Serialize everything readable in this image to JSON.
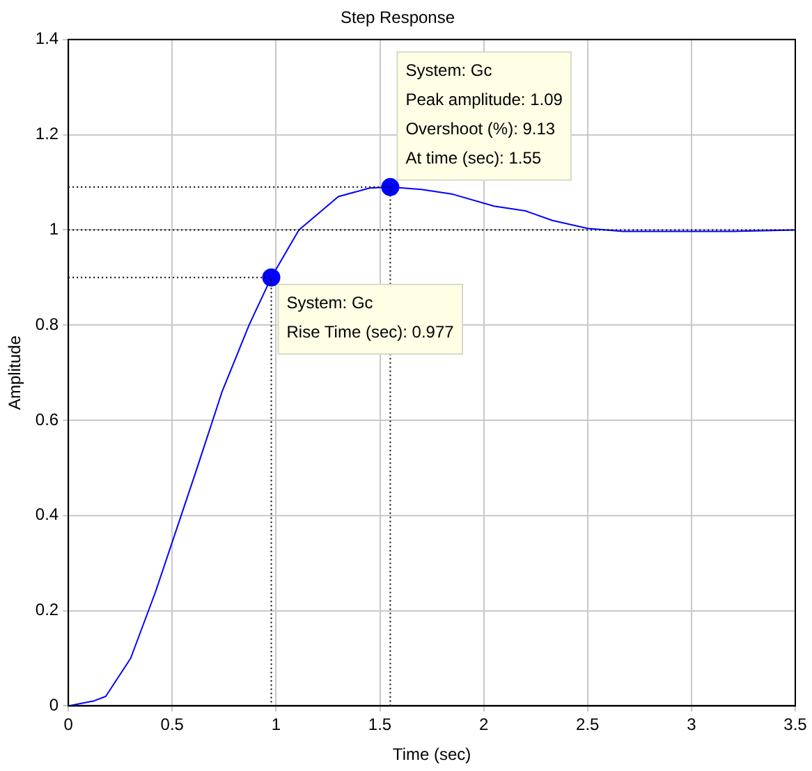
{
  "chart_data": {
    "type": "line",
    "title": "Step Response",
    "xlabel": "Time (sec)",
    "ylabel": "Amplitude",
    "xlim": [
      0,
      3.5
    ],
    "xticks": [
      0,
      0.5,
      1,
      1.5,
      2,
      2.5,
      3,
      3.5
    ],
    "ylim": [
      0,
      1.4
    ],
    "yticks": [
      0,
      0.2,
      0.4,
      0.6,
      0.8,
      1,
      1.2,
      1.4
    ],
    "grid": true,
    "marker": "none",
    "line_style": "solid",
    "series": [
      {
        "color": "#000000",
        "line_style": "dotted",
        "x": [
          0,
          0.977,
          0.977
        ],
        "values": [
          0.9,
          0.9,
          0
        ]
      },
      {
        "color": "#000000",
        "line_style": "dotted",
        "x": [
          0,
          1.55,
          1.55
        ],
        "values": [
          1.09,
          1.09,
          0
        ]
      },
      {
        "color": "#0000ff",
        "x": [
          0,
          0.12,
          0.18,
          0.3,
          0.42,
          0.52,
          0.62,
          0.74,
          0.87,
          0.977,
          1.11,
          1.3,
          1.45,
          1.55,
          1.7,
          1.85,
          2.05,
          2.2,
          2.33,
          2.5,
          2.67,
          3.0,
          3.2,
          3.5
        ],
        "values": [
          0,
          0.01,
          0.02,
          0.1,
          0.24,
          0.37,
          0.5,
          0.66,
          0.8,
          0.9,
          1.0,
          1.07,
          1.088,
          1.09,
          1.085,
          1.075,
          1.05,
          1.04,
          1.02,
          1.003,
          0.997,
          0.997,
          0.997,
          1.0
        ]
      },
      {
        "type": "scatter",
        "color": "#0000ff",
        "marker": "circle",
        "x": [
          0.977,
          1.55
        ],
        "values": [
          0.9,
          1.09
        ]
      }
    ],
    "ref_lines": [
      {
        "axis": "y",
        "value": 1,
        "color": "#000000",
        "line_style": "dotted"
      }
    ],
    "annotations": [
      {
        "text": "System: Gc\nRise Time (sec): 0.977",
        "x": 0.977,
        "y": 0.9
      },
      {
        "text": "System: Gc\nPeak amplitude: 1.09\nOvershoot (%): 9.13\nAt time (sec): 1.55",
        "x": 1.55,
        "y": 1.09
      }
    ]
  }
}
